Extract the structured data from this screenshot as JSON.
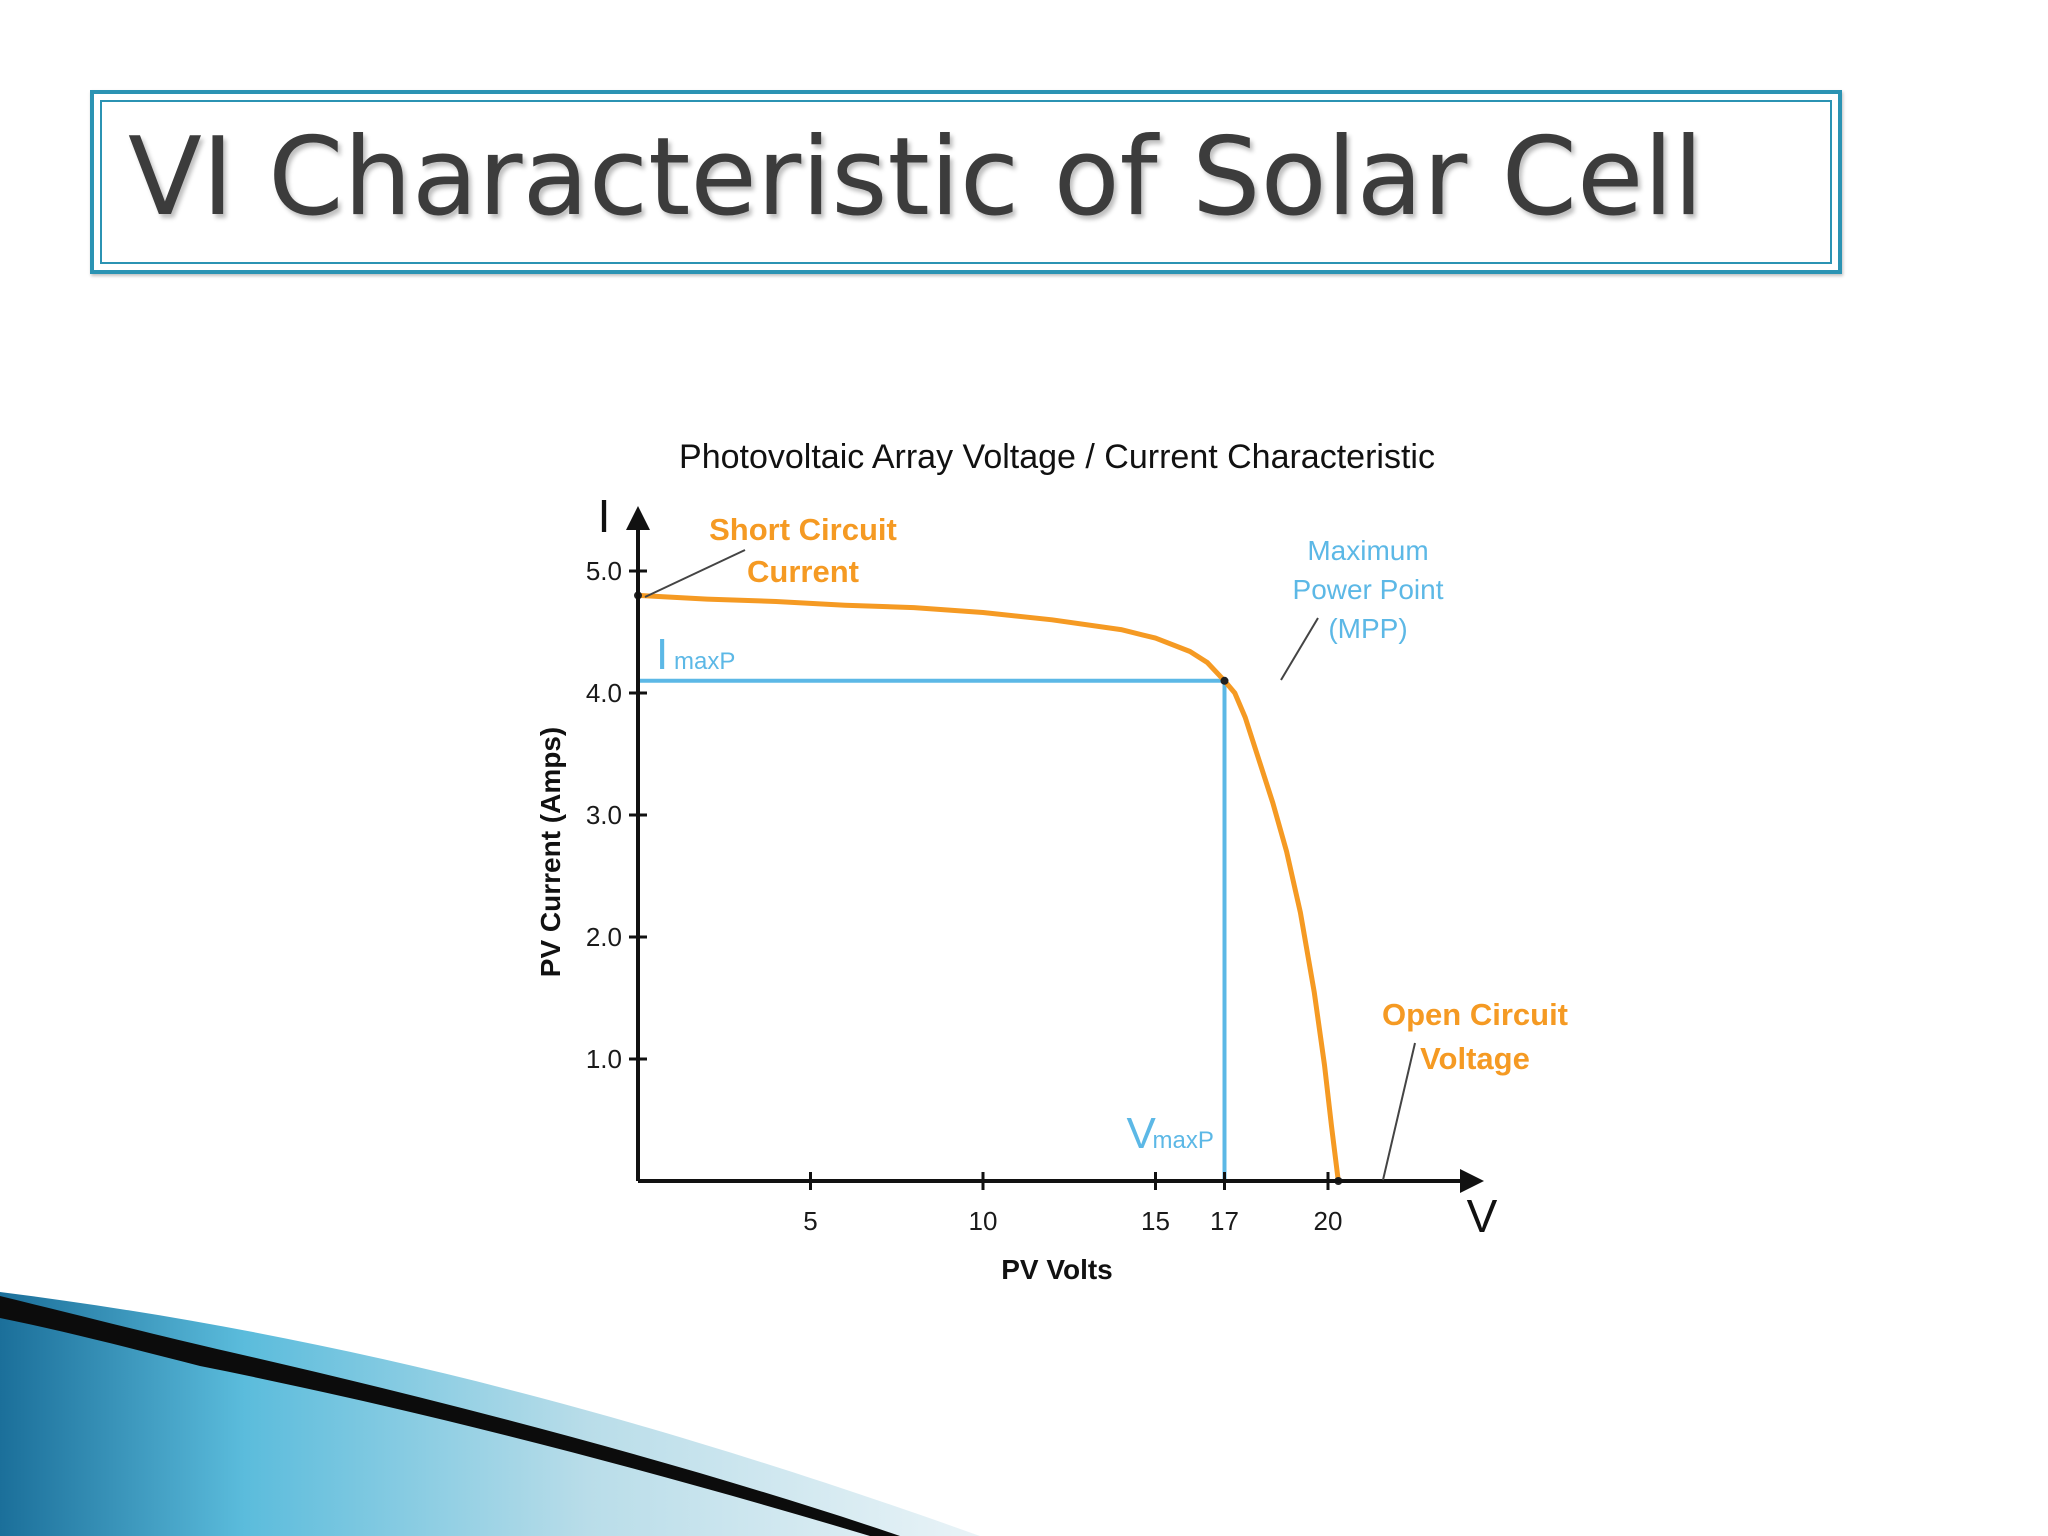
{
  "slide": {
    "title": "VI Characteristic of Solar Cell"
  },
  "colors": {
    "frame": "#2b93b3",
    "curve": "#f59a23",
    "mpp_lines": "#5cb8e6",
    "axis": "#111111",
    "wave_dark": "#1b6f9a",
    "wave_light": "#d8ebf3"
  },
  "chart_data": {
    "type": "line",
    "title": "Photovoltaic Array Voltage / Current Characteristic",
    "xlabel": "PV Volts",
    "ylabel": "PV Current (Amps)",
    "x_axis_letter": "V",
    "y_axis_letter": "I",
    "xlim": [
      0,
      24
    ],
    "ylim": [
      0,
      5.0
    ],
    "x_ticks": [
      5,
      10,
      15,
      17,
      20
    ],
    "x_tick_labels": [
      "5",
      "10",
      "15",
      "17",
      "20"
    ],
    "y_ticks": [
      1.0,
      2.0,
      3.0,
      4.0,
      5.0
    ],
    "y_tick_labels": [
      "1.0",
      "2.0",
      "3.0",
      "4.0",
      "5.0"
    ],
    "grid": false,
    "series": [
      {
        "x": [
          0,
          2,
          4,
          6,
          8,
          10,
          12,
          14,
          15,
          16,
          16.5,
          17,
          17.3,
          17.6,
          18,
          18.4,
          18.8,
          19.2,
          19.6,
          19.9,
          20.1,
          20.3
        ],
        "y": [
          4.8,
          4.77,
          4.75,
          4.72,
          4.7,
          4.66,
          4.6,
          4.52,
          4.45,
          4.34,
          4.25,
          4.1,
          4.0,
          3.8,
          3.45,
          3.1,
          2.7,
          2.2,
          1.55,
          0.95,
          0.45,
          0.0
        ]
      }
    ],
    "mpp": {
      "v": 17,
      "i": 4.1,
      "i_label": "I",
      "i_label_sub": "maxP",
      "v_label": "V",
      "v_label_sub": "maxP"
    },
    "annotations": {
      "short_circuit": [
        "Short Circuit",
        "Current"
      ],
      "max_power_point": [
        "Maximum",
        "Power Point",
        "(MPP)"
      ],
      "open_circuit": [
        "Open Circuit",
        "Voltage"
      ]
    }
  }
}
